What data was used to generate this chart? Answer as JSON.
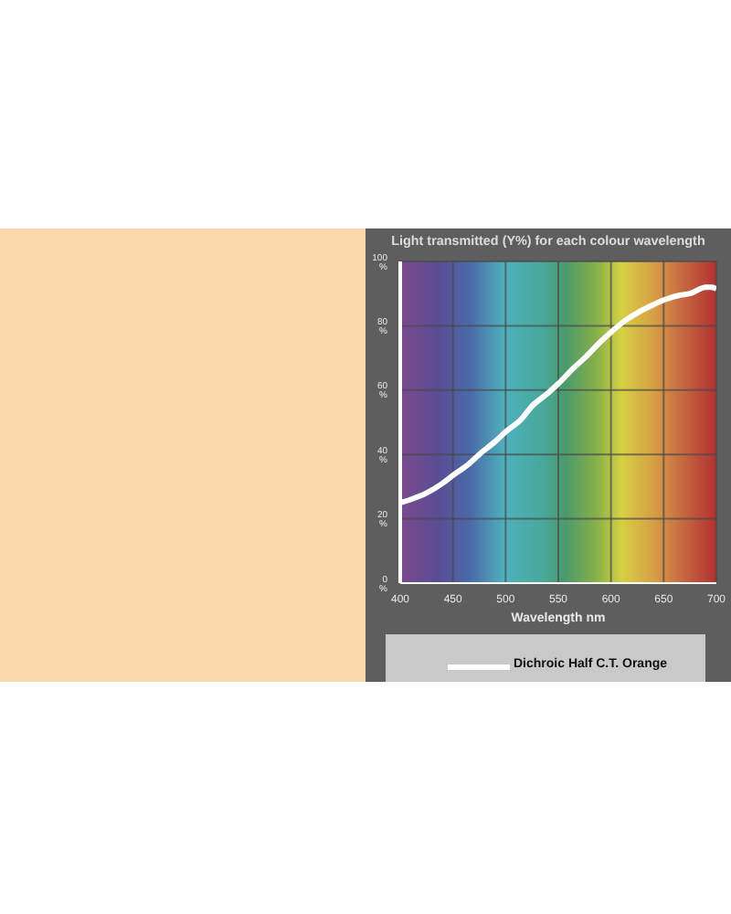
{
  "chart_data": {
    "type": "line",
    "title": "Light transmitted (Y%) for each colour wavelength",
    "xlabel": "Wavelength nm",
    "x": [
      400,
      410,
      425,
      440,
      450,
      465,
      475,
      490,
      500,
      515,
      525,
      540,
      550,
      565,
      575,
      590,
      600,
      615,
      625,
      640,
      650,
      665,
      675,
      690,
      695,
      700
    ],
    "series": [
      {
        "name": "Dichroic Half C.T. Orange",
        "color": "#ffffff",
        "values": [
          25,
          26,
          28,
          31,
          33.5,
          37,
          40,
          44,
          47,
          51,
          55,
          59,
          62,
          67,
          70,
          75,
          78,
          82,
          84,
          86.5,
          88,
          89.5,
          90,
          92,
          92,
          91.5
        ]
      }
    ],
    "xlim": [
      400,
      700
    ],
    "xticks": [
      400,
      450,
      500,
      550,
      600,
      650,
      700
    ],
    "ylim": [
      0,
      100
    ],
    "yticks": [
      {
        "value": 0,
        "label": "0 %"
      },
      {
        "value": 20,
        "label": "20 %"
      },
      {
        "value": 40,
        "label": "40 %"
      },
      {
        "value": 60,
        "label": "60 %"
      },
      {
        "value": 80,
        "label": "80 %"
      },
      {
        "value": 100,
        "label": "100 %"
      }
    ],
    "grid": true,
    "legend": "bottom",
    "marker": "none",
    "line_style": "solid"
  }
}
